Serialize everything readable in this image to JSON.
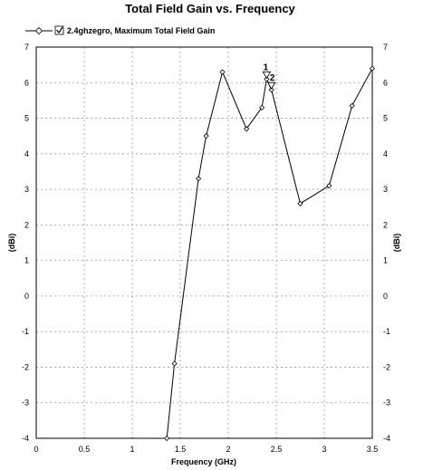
{
  "chart_data": {
    "type": "line",
    "title": "Total Field Gain vs. Frequency",
    "xlabel": "Frequency (GHz)",
    "ylabel": "(dBi)",
    "ylabel_right": "(dBi)",
    "xlim": [
      0,
      3.5
    ],
    "ylim": [
      -4,
      7
    ],
    "x_ticks": [
      "0",
      "0.5",
      "1",
      "1.5",
      "2",
      "2.5",
      "3",
      "3.5"
    ],
    "y_ticks": [
      "-4",
      "-3",
      "-2",
      "-1",
      "0",
      "1",
      "2",
      "3",
      "4",
      "5",
      "6",
      "7"
    ],
    "grid": true,
    "legend_position": "top-left",
    "series": [
      {
        "name": "2.4ghzegro, Maximum Total Field Gain",
        "color": "#000000",
        "x": [
          1.36,
          1.44,
          1.69,
          1.77,
          1.94,
          2.19,
          2.35,
          2.4,
          2.45,
          2.75,
          3.05,
          3.29,
          3.5
        ],
        "y": [
          -4.0,
          -1.9,
          3.3,
          4.5,
          6.3,
          4.7,
          5.3,
          6.1,
          5.8,
          2.6,
          3.1,
          5.35,
          6.4
        ]
      }
    ],
    "markers": [
      {
        "label": "1",
        "x": 2.4,
        "y": 6.1
      },
      {
        "label": "2",
        "x": 2.45,
        "y": 5.8
      }
    ]
  }
}
